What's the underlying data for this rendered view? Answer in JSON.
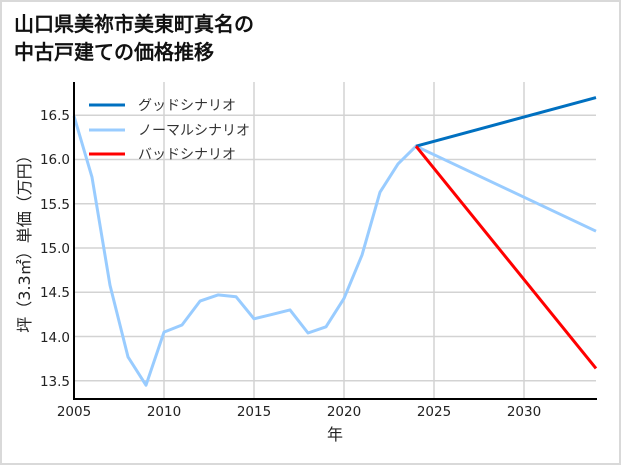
{
  "title": {
    "line1": "山口県美祢市美東町真名の",
    "line2": "中古戸建ての価格推移"
  },
  "chart_data": {
    "type": "line",
    "title": "山口県美祢市美東町真名の中古戸建ての価格推移",
    "xlabel": "年",
    "ylabel": "坪（3.3㎡）単価（万円）",
    "xlim": [
      2005,
      2034
    ],
    "ylim": [
      13.3,
      16.84
    ],
    "xticks": [
      2005,
      2010,
      2015,
      2020,
      2025,
      2030
    ],
    "yticks": [
      13.5,
      14.0,
      14.5,
      15.0,
      15.5,
      16.0,
      16.5
    ],
    "grid": true,
    "legend_position": "upper left",
    "series": [
      {
        "name": "グッドシナリオ",
        "color": "#0070c0",
        "x": [
          2024,
          2034
        ],
        "values": [
          16.15,
          16.7
        ]
      },
      {
        "name": "ノーマルシナリオ",
        "color": "#99ccff",
        "x": [
          2005,
          2006,
          2007,
          2008,
          2009,
          2010,
          2011,
          2012,
          2013,
          2014,
          2015,
          2016,
          2017,
          2018,
          2019,
          2020,
          2021,
          2022,
          2023,
          2024,
          2034
        ],
        "values": [
          16.49,
          15.8,
          14.58,
          13.77,
          13.45,
          14.05,
          14.13,
          14.4,
          14.47,
          14.45,
          14.2,
          14.25,
          14.3,
          14.04,
          14.11,
          14.43,
          14.92,
          15.63,
          15.95,
          16.15,
          15.19
        ]
      },
      {
        "name": "バッドシナリオ",
        "color": "#ff0000",
        "x": [
          2024,
          2034
        ],
        "values": [
          16.15,
          13.64
        ]
      }
    ]
  },
  "axes": {
    "xlabel": "年",
    "ylabel": "坪（3.3㎡）単価（万円）",
    "xtick_labels": [
      "2005",
      "2010",
      "2015",
      "2020",
      "2025",
      "2030"
    ],
    "ytick_labels": [
      "16.5",
      "16.0",
      "15.5",
      "15.0",
      "14.5",
      "14.0",
      "13.5"
    ]
  },
  "legend": {
    "items": [
      {
        "label": "グッドシナリオ",
        "color": "#0070c0"
      },
      {
        "label": "ノーマルシナリオ",
        "color": "#99ccff"
      },
      {
        "label": "バッドシナリオ",
        "color": "#ff0000"
      }
    ]
  }
}
